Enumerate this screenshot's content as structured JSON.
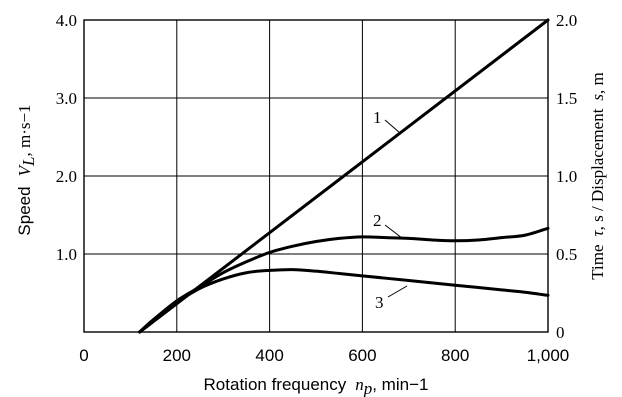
{
  "chart_data": {
    "type": "line",
    "xlabel": "Rotation frequency",
    "xlabel_symbol": "n",
    "xlabel_subscript": "p",
    "xlabel_unit": ", min−1",
    "ylabel_left": "Speed",
    "ylabel_left_symbol": "V",
    "ylabel_left_subscript": "L",
    "ylabel_left_unit": ", m·s−1",
    "ylabel_right_a": "Time",
    "ylabel_right_sym1": "τ",
    "ylabel_right_b": ", s / Displacement",
    "ylabel_right_sym2": "s",
    "ylabel_right_c": ", m",
    "xlim": [
      0,
      1000
    ],
    "ylim_left": [
      0,
      4.0
    ],
    "ylim_right": [
      0,
      2.0
    ],
    "grid": true,
    "x_ticks": [
      "0",
      "200",
      "400",
      "600",
      "800",
      "1,000"
    ],
    "y_left_ticks": [
      "4.0",
      "3.0",
      "2.0",
      "1.0"
    ],
    "y_right_ticks": [
      "2.0",
      "1.5",
      "1.0",
      "0.5",
      "0"
    ],
    "series": [
      {
        "name": "1",
        "axis": "left",
        "x": [
          120,
          1000
        ],
        "y": [
          0,
          4.0
        ]
      },
      {
        "name": "2",
        "axis": "right",
        "x": [
          120,
          150,
          200,
          250,
          300,
          350,
          400,
          450,
          500,
          550,
          600,
          650,
          700,
          750,
          800,
          850,
          900,
          950,
          1000
        ],
        "y": [
          0,
          0.08,
          0.2,
          0.29,
          0.38,
          0.45,
          0.51,
          0.55,
          0.58,
          0.6,
          0.61,
          0.605,
          0.6,
          0.59,
          0.585,
          0.59,
          0.605,
          0.62,
          0.665
        ]
      },
      {
        "name": "3",
        "axis": "right",
        "x": [
          120,
          150,
          200,
          250,
          300,
          350,
          400,
          450,
          500,
          550,
          600,
          650,
          700,
          750,
          800,
          850,
          900,
          950,
          1000
        ],
        "y": [
          0,
          0.08,
          0.19,
          0.28,
          0.34,
          0.38,
          0.395,
          0.4,
          0.39,
          0.375,
          0.36,
          0.345,
          0.33,
          0.315,
          0.3,
          0.285,
          0.27,
          0.255,
          0.235
        ]
      }
    ]
  }
}
